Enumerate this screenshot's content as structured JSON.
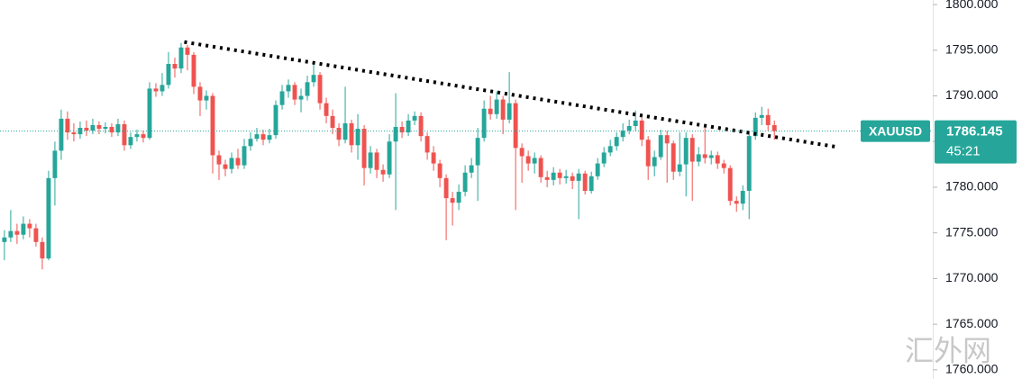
{
  "chart_data": {
    "type": "candlestick",
    "symbol": "XAUUSD",
    "last_price": 1786.145,
    "last_price_label": "1786.145",
    "countdown": "45:21",
    "watermark": "汇外网",
    "up_color": "#26a69a",
    "down_color": "#ef5350",
    "xlim": [
      -0.7,
      147.1
    ],
    "ylim": [
      1759,
      1800.5
    ],
    "yticks": [
      {
        "value": 1800,
        "label": "1800.000"
      },
      {
        "value": 1795,
        "label": "1795.000"
      },
      {
        "value": 1790,
        "label": "1790.000"
      },
      {
        "value": 1785,
        "label": "1785.000"
      },
      {
        "value": 1780,
        "label": "1780.000"
      },
      {
        "value": 1775,
        "label": "1775.000"
      },
      {
        "value": 1770,
        "label": "1770.000"
      },
      {
        "value": 1765,
        "label": "1765.000"
      },
      {
        "value": 1760,
        "label": "1760.000"
      }
    ],
    "trendline": {
      "x": [
        28.5,
        132
      ],
      "y": [
        1795.9,
        1784.4
      ]
    },
    "open": [
      1774,
      1774.5,
      1775.2,
      1774.8,
      1776,
      1775.5,
      1774,
      1772.2,
      1781,
      1784,
      1787.5,
      1786,
      1785.8,
      1786.5,
      1786.2,
      1786.8,
      1786.4,
      1786.6,
      1786,
      1786.9,
      1784.6,
      1785.5,
      1785.8,
      1785.4,
      1790.8,
      1790.5,
      1791.2,
      1793.5,
      1793,
      1795.3,
      1794.5,
      1791,
      1789.5,
      1790,
      1783.5,
      1782.5,
      1782,
      1783.2,
      1782.4,
      1784.5,
      1785.3,
      1785.8,
      1785.2,
      1785.7,
      1789,
      1790.5,
      1791.2,
      1789.6,
      1790,
      1791.5,
      1792.3,
      1789.2,
      1787.8,
      1786.5,
      1785.2,
      1787,
      1784.6,
      1786.4,
      1782.1,
      1783.8,
      1781.9,
      1781.4,
      1785,
      1786.6,
      1786,
      1787.3,
      1787.8,
      1785.6,
      1783.8,
      1782.6,
      1781,
      1778.8,
      1778.3,
      1779.5,
      1781.6,
      1782.4,
      1785.4,
      1788.6,
      1788,
      1789.6,
      1787.4,
      1789.2,
      1784.3,
      1783.4,
      1782.6,
      1783.2,
      1781.1,
      1780.8,
      1781.6,
      1781,
      1781.2,
      1780.7,
      1781.5,
      1779.6,
      1781.2,
      1782.6,
      1783.8,
      1784.5,
      1785.5,
      1786.2,
      1786.7,
      1787.3,
      1785.2,
      1782.3,
      1783.3,
      1785.7,
      1784.8,
      1781.7,
      1782.5,
      1785.4,
      1782.8,
      1783.6,
      1783.2,
      1783.5,
      1782.6,
      1782.1,
      1778.5,
      1778.2,
      1779.6,
      1785.6,
      1787.6,
      1787.9,
      1786.8
    ],
    "high": [
      1775.3,
      1777.5,
      1776,
      1776.8,
      1776.5,
      1776,
      1774.5,
      1781.8,
      1785,
      1788.5,
      1788.3,
      1787,
      1787.2,
      1787.3,
      1787.5,
      1787.2,
      1787.1,
      1787,
      1787.5,
      1787.3,
      1786,
      1786.3,
      1786.2,
      1791.5,
      1791.4,
      1792.5,
      1794.8,
      1794.2,
      1795.8,
      1795.6,
      1794.8,
      1791.5,
      1790.6,
      1790.3,
      1784,
      1783,
      1783.8,
      1784.2,
      1785.3,
      1786,
      1786.5,
      1786.3,
      1786.4,
      1789.5,
      1791.2,
      1791.8,
      1791.5,
      1790.8,
      1792.2,
      1793.6,
      1792.6,
      1789.8,
      1788.5,
      1787,
      1791,
      1787.4,
      1788,
      1786.8,
      1784.5,
      1784.2,
      1782.5,
      1785.8,
      1790.3,
      1787.2,
      1788,
      1788.3,
      1788.2,
      1786,
      1784.5,
      1783,
      1781.4,
      1779.5,
      1780.3,
      1782.4,
      1783.2,
      1786.5,
      1789.5,
      1790,
      1790.5,
      1790,
      1792.6,
      1789.6,
      1784.8,
      1784,
      1783.8,
      1783.5,
      1781.8,
      1782.2,
      1782,
      1781.9,
      1781.6,
      1782,
      1781.8,
      1781.7,
      1783.2,
      1784.4,
      1785.2,
      1786,
      1787,
      1787.4,
      1788.4,
      1787.6,
      1785.6,
      1784,
      1786.3,
      1786.2,
      1785.1,
      1786,
      1786,
      1785.8,
      1784.4,
      1786.5,
      1784,
      1783.9,
      1783,
      1782.4,
      1779,
      1780.2,
      1786,
      1788.2,
      1788.8,
      1788.6,
      1787.3
    ],
    "low": [
      1772,
      1774,
      1773.8,
      1774.3,
      1774.5,
      1773.5,
      1771,
      1772,
      1778,
      1783,
      1785.2,
      1785,
      1785.3,
      1785.6,
      1785.8,
      1785.8,
      1785.9,
      1785.5,
      1785.6,
      1784,
      1784.2,
      1785,
      1784.9,
      1785.2,
      1789.9,
      1790,
      1790.8,
      1792,
      1792.5,
      1792.8,
      1790.2,
      1787.8,
      1788.5,
      1781.5,
      1780.8,
      1781.2,
      1781.5,
      1782,
      1782,
      1784,
      1785,
      1784.6,
      1784.8,
      1785.3,
      1788.5,
      1789.8,
      1789,
      1788.2,
      1789.5,
      1791,
      1788.5,
      1787,
      1785.8,
      1784.5,
      1784.8,
      1783.8,
      1783,
      1780.2,
      1781.5,
      1781,
      1780.6,
      1781,
      1777.5,
      1785.4,
      1785.6,
      1786.8,
      1785,
      1783,
      1781.8,
      1780,
      1774.2,
      1775.8,
      1777.5,
      1779,
      1781,
      1778.5,
      1785,
      1787.4,
      1787.5,
      1785.8,
      1787,
      1777.5,
      1780.5,
      1781.8,
      1781.5,
      1780.5,
      1780,
      1780.2,
      1780.3,
      1780.4,
      1779.8,
      1776.5,
      1779.2,
      1779.3,
      1780.8,
      1782.2,
      1783.4,
      1784,
      1785,
      1785.8,
      1786.2,
      1784.5,
      1780.8,
      1781.2,
      1783,
      1780.5,
      1780.8,
      1781.2,
      1779,
      1778.5,
      1782.3,
      1782.6,
      1782.5,
      1782,
      1781.5,
      1778,
      1777.3,
      1777.5,
      1776.5,
      1785.2,
      1786.8,
      1786.2,
      1785.2
    ],
    "close": [
      1774.5,
      1775.2,
      1774.8,
      1776,
      1775.5,
      1774,
      1772.2,
      1781,
      1784,
      1787.5,
      1786,
      1785.8,
      1786.5,
      1786.2,
      1786.8,
      1786.4,
      1786.6,
      1786,
      1786.9,
      1784.6,
      1785.5,
      1785.8,
      1785.4,
      1790.8,
      1790.5,
      1791.2,
      1793.5,
      1793,
      1795.3,
      1794.5,
      1791,
      1789.5,
      1790,
      1783.5,
      1782.5,
      1782,
      1783.2,
      1782.4,
      1784.5,
      1785.3,
      1785.8,
      1785.2,
      1785.7,
      1789,
      1790.5,
      1791.2,
      1789.6,
      1790,
      1791.5,
      1792.3,
      1789.2,
      1787.8,
      1786.5,
      1785.2,
      1787,
      1784.6,
      1786.4,
      1782.1,
      1783.8,
      1781.9,
      1781.4,
      1785,
      1786.6,
      1786,
      1787.3,
      1787.8,
      1785.6,
      1783.8,
      1782.6,
      1781,
      1778.8,
      1778.3,
      1779.5,
      1781.6,
      1782.4,
      1785.4,
      1788.6,
      1788,
      1789.6,
      1787.4,
      1789.2,
      1784.3,
      1783.4,
      1782.6,
      1783.2,
      1781.1,
      1780.8,
      1781.6,
      1781,
      1781.2,
      1780.7,
      1781.5,
      1779.6,
      1781.2,
      1782.6,
      1783.8,
      1784.5,
      1785.5,
      1786.2,
      1786.7,
      1787.3,
      1785.2,
      1782.3,
      1783.3,
      1785.7,
      1784.8,
      1781.7,
      1782.5,
      1785.4,
      1782.8,
      1783.6,
      1783.2,
      1783.5,
      1782.6,
      1782.1,
      1778.5,
      1778.2,
      1779.6,
      1785.6,
      1787.6,
      1787.9,
      1786.8,
      1786.145
    ]
  }
}
